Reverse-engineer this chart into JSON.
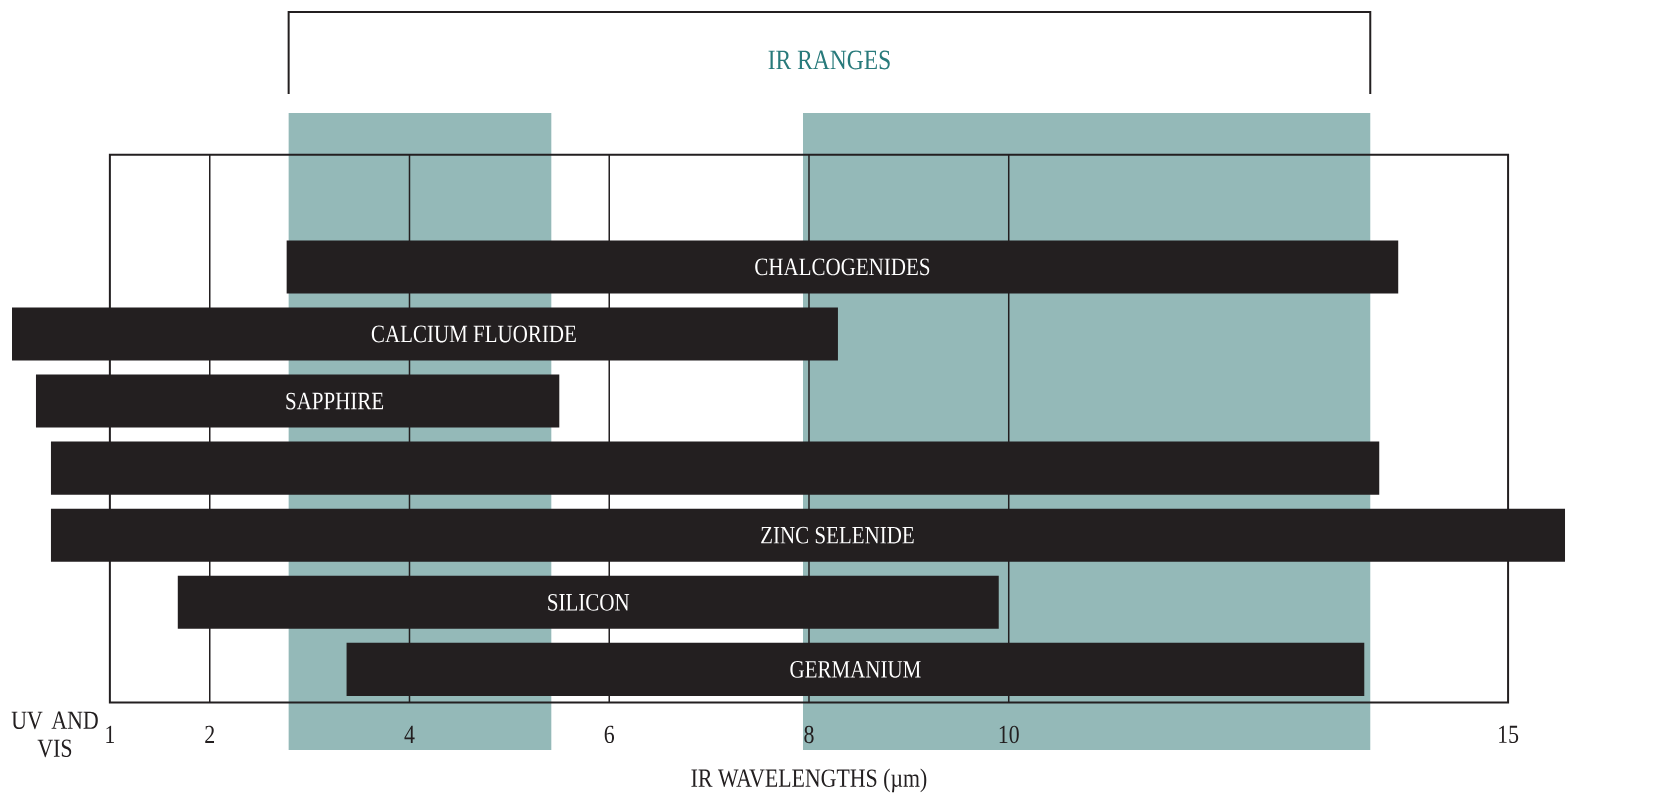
{
  "chart_data": {
    "type": "bar",
    "orientation": "horizontal",
    "xlabel": "IR WAVELENGTHS (µm)",
    "categories": [
      "CHALCOGENIDES",
      "CALCIUM FLUORIDE",
      "SAPPHIRE",
      null,
      "ZINC SELENIDE",
      "SILICON",
      "GERMANIUM"
    ],
    "base": [
      2.77,
      0.02,
      0.26,
      0.41,
      0.41,
      1.68,
      3.37
    ],
    "values": [
      11.13,
      8.27,
      5.24,
      13.3,
      15.16,
      8.22,
      10.19
    ],
    "color": "#231f20",
    "xlim": [
      0,
      15.57
    ],
    "xticks": [
      {
        "value": 0.45,
        "label": "UV AND VIS"
      },
      1,
      2,
      4,
      6,
      8,
      10,
      15
    ],
    "grid": "x",
    "bands": [
      {
        "axis": "x",
        "from": 2.79,
        "to": 5.42,
        "color": "#94b9b8"
      },
      {
        "axis": "x",
        "from": 7.94,
        "to": 13.62,
        "color": "#94b9b8"
      }
    ],
    "annotations": [
      "IR RANGES"
    ]
  }
}
